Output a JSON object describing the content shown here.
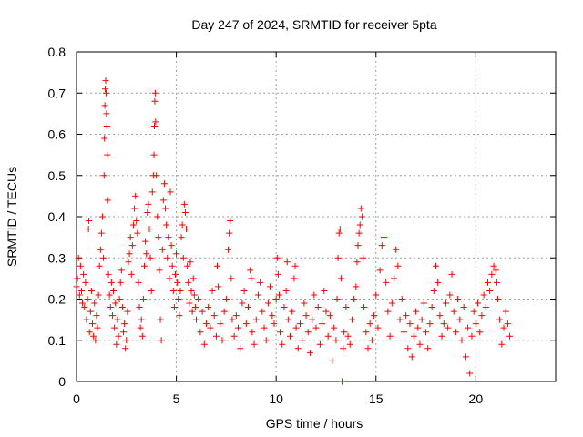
{
  "chart_data": {
    "type": "scatter",
    "title": "Day 247 of 2024, SRMTID for receiver 5pta",
    "xlabel": "GPS time / hours",
    "ylabel": "SRMTID / TECUs",
    "xlim": [
      0,
      24
    ],
    "ylim": [
      0,
      0.8
    ],
    "xticks": [
      0,
      5,
      10,
      15,
      20
    ],
    "xtick_labels": [
      "0",
      "5",
      "10",
      "15",
      "20"
    ],
    "yticks": [
      0,
      0.1,
      0.2,
      0.3,
      0.4,
      0.5,
      0.6,
      0.7,
      0.8
    ],
    "ytick_labels": [
      "0",
      "0.1",
      "0.2",
      "0.3",
      "0.4",
      "0.5",
      "0.6",
      "0.7",
      "0.8"
    ],
    "grid": true,
    "marker": "plus",
    "color": "#ff0000",
    "series": [
      {
        "name": "SRMTID",
        "points": [
          [
            0.0,
            0.23
          ],
          [
            0.05,
            0.25
          ],
          [
            0.1,
            0.3
          ],
          [
            0.15,
            0.21
          ],
          [
            0.2,
            0.28
          ],
          [
            0.25,
            0.22
          ],
          [
            0.3,
            0.19
          ],
          [
            0.35,
            0.26
          ],
          [
            0.4,
            0.18
          ],
          [
            0.45,
            0.24
          ],
          [
            0.5,
            0.15
          ],
          [
            0.55,
            0.2
          ],
          [
            0.6,
            0.37
          ],
          [
            0.62,
            0.39
          ],
          [
            0.65,
            0.12
          ],
          [
            0.7,
            0.17
          ],
          [
            0.75,
            0.22
          ],
          [
            0.8,
            0.14
          ],
          [
            0.85,
            0.11
          ],
          [
            0.9,
            0.19
          ],
          [
            0.95,
            0.1
          ],
          [
            1.0,
            0.16
          ],
          [
            1.05,
            0.13
          ],
          [
            1.1,
            0.21
          ],
          [
            1.15,
            0.28
          ],
          [
            1.2,
            0.32
          ],
          [
            1.25,
            0.36
          ],
          [
            1.3,
            0.4
          ],
          [
            1.35,
            0.3
          ],
          [
            1.38,
            0.5
          ],
          [
            1.4,
            0.59
          ],
          [
            1.42,
            0.67
          ],
          [
            1.44,
            0.71
          ],
          [
            1.46,
            0.73
          ],
          [
            1.48,
            0.7
          ],
          [
            1.5,
            0.65
          ],
          [
            1.52,
            0.62
          ],
          [
            1.54,
            0.55
          ],
          [
            1.56,
            0.44
          ],
          [
            1.6,
            0.26
          ],
          [
            1.65,
            0.21
          ],
          [
            1.7,
            0.18
          ],
          [
            1.75,
            0.24
          ],
          [
            1.8,
            0.16
          ],
          [
            1.85,
            0.22
          ],
          [
            1.9,
            0.13
          ],
          [
            1.95,
            0.19
          ],
          [
            2.0,
            0.09
          ],
          [
            2.05,
            0.15
          ],
          [
            2.1,
            0.11
          ],
          [
            2.15,
            0.2
          ],
          [
            2.2,
            0.24
          ],
          [
            2.25,
            0.27
          ],
          [
            2.3,
            0.18
          ],
          [
            2.35,
            0.12
          ],
          [
            2.4,
            0.14
          ],
          [
            2.45,
            0.08
          ],
          [
            2.5,
            0.1
          ],
          [
            2.55,
            0.17
          ],
          [
            2.6,
            0.29
          ],
          [
            2.65,
            0.31
          ],
          [
            2.7,
            0.35
          ],
          [
            2.75,
            0.26
          ],
          [
            2.8,
            0.33
          ],
          [
            2.85,
            0.38
          ],
          [
            2.9,
            0.42
          ],
          [
            2.95,
            0.45
          ],
          [
            3.0,
            0.39
          ],
          [
            3.05,
            0.36
          ],
          [
            3.1,
            0.24
          ],
          [
            3.15,
            0.18
          ],
          [
            3.2,
            0.13
          ],
          [
            3.25,
            0.15
          ],
          [
            3.3,
            0.11
          ],
          [
            3.35,
            0.2
          ],
          [
            3.4,
            0.28
          ],
          [
            3.45,
            0.34
          ],
          [
            3.5,
            0.31
          ],
          [
            3.55,
            0.41
          ],
          [
            3.6,
            0.43
          ],
          [
            3.65,
            0.37
          ],
          [
            3.7,
            0.3
          ],
          [
            3.75,
            0.22
          ],
          [
            3.8,
            0.46
          ],
          [
            3.85,
            0.5
          ],
          [
            3.88,
            0.55
          ],
          [
            3.9,
            0.62
          ],
          [
            3.92,
            0.68
          ],
          [
            3.94,
            0.7
          ],
          [
            3.96,
            0.63
          ],
          [
            4.0,
            0.5
          ],
          [
            4.05,
            0.4
          ],
          [
            4.1,
            0.35
          ],
          [
            4.15,
            0.27
          ],
          [
            4.2,
            0.15
          ],
          [
            4.25,
            0.1
          ],
          [
            4.3,
            0.32
          ],
          [
            4.35,
            0.44
          ],
          [
            4.4,
            0.48
          ],
          [
            4.45,
            0.42
          ],
          [
            4.5,
            0.38
          ],
          [
            4.55,
            0.3
          ],
          [
            4.6,
            0.35
          ],
          [
            4.65,
            0.25
          ],
          [
            4.7,
            0.46
          ],
          [
            4.75,
            0.33
          ],
          [
            4.8,
            0.28
          ],
          [
            4.85,
            0.22
          ],
          [
            4.9,
            0.18
          ],
          [
            4.95,
            0.26
          ],
          [
            5.0,
            0.31
          ],
          [
            5.05,
            0.24
          ],
          [
            5.1,
            0.2
          ],
          [
            5.15,
            0.16
          ],
          [
            5.2,
            0.22
          ],
          [
            5.25,
            0.35
          ],
          [
            5.3,
            0.38
          ],
          [
            5.35,
            0.3
          ],
          [
            5.4,
            0.43
          ],
          [
            5.45,
            0.41
          ],
          [
            5.5,
            0.37
          ],
          [
            5.55,
            0.28
          ],
          [
            5.6,
            0.24
          ],
          [
            5.65,
            0.19
          ],
          [
            5.7,
            0.29
          ],
          [
            5.75,
            0.22
          ],
          [
            5.8,
            0.17
          ],
          [
            5.85,
            0.25
          ],
          [
            5.9,
            0.21
          ],
          [
            5.95,
            0.18
          ],
          [
            6.0,
            0.15
          ],
          [
            6.1,
            0.2
          ],
          [
            6.2,
            0.12
          ],
          [
            6.3,
            0.17
          ],
          [
            6.4,
            0.09
          ],
          [
            6.5,
            0.14
          ],
          [
            6.6,
            0.18
          ],
          [
            6.7,
            0.13
          ],
          [
            6.8,
            0.22
          ],
          [
            6.9,
            0.16
          ],
          [
            7.0,
            0.11
          ],
          [
            7.05,
            0.28
          ],
          [
            7.1,
            0.23
          ],
          [
            7.2,
            0.14
          ],
          [
            7.3,
            0.1
          ],
          [
            7.4,
            0.17
          ],
          [
            7.5,
            0.2
          ],
          [
            7.6,
            0.32
          ],
          [
            7.65,
            0.36
          ],
          [
            7.7,
            0.39
          ],
          [
            7.75,
            0.25
          ],
          [
            7.8,
            0.15
          ],
          [
            7.9,
            0.11
          ],
          [
            8.0,
            0.16
          ],
          [
            8.1,
            0.13
          ],
          [
            8.2,
            0.08
          ],
          [
            8.3,
            0.19
          ],
          [
            8.4,
            0.22
          ],
          [
            8.5,
            0.14
          ],
          [
            8.6,
            0.18
          ],
          [
            8.7,
            0.27
          ],
          [
            8.75,
            0.25
          ],
          [
            8.8,
            0.12
          ],
          [
            8.9,
            0.09
          ],
          [
            9.0,
            0.15
          ],
          [
            9.1,
            0.21
          ],
          [
            9.2,
            0.24
          ],
          [
            9.3,
            0.17
          ],
          [
            9.4,
            0.13
          ],
          [
            9.5,
            0.1
          ],
          [
            9.6,
            0.19
          ],
          [
            9.7,
            0.23
          ],
          [
            9.8,
            0.16
          ],
          [
            9.9,
            0.14
          ],
          [
            10.0,
            0.2
          ],
          [
            10.05,
            0.3
          ],
          [
            10.1,
            0.26
          ],
          [
            10.15,
            0.21
          ],
          [
            10.2,
            0.12
          ],
          [
            10.3,
            0.09
          ],
          [
            10.4,
            0.18
          ],
          [
            10.5,
            0.22
          ],
          [
            10.55,
            0.29
          ],
          [
            10.6,
            0.15
          ],
          [
            10.7,
            0.11
          ],
          [
            10.8,
            0.17
          ],
          [
            10.9,
            0.25
          ],
          [
            10.95,
            0.28
          ],
          [
            11.0,
            0.13
          ],
          [
            11.1,
            0.08
          ],
          [
            11.2,
            0.14
          ],
          [
            11.3,
            0.1
          ],
          [
            11.4,
            0.19
          ],
          [
            11.5,
            0.16
          ],
          [
            11.6,
            0.12
          ],
          [
            11.7,
            0.07
          ],
          [
            11.8,
            0.15
          ],
          [
            11.9,
            0.21
          ],
          [
            12.0,
            0.13
          ],
          [
            12.1,
            0.18
          ],
          [
            12.2,
            0.09
          ],
          [
            12.3,
            0.14
          ],
          [
            12.4,
            0.22
          ],
          [
            12.5,
            0.17
          ],
          [
            12.6,
            0.11
          ],
          [
            12.7,
            0.16
          ],
          [
            12.8,
            0.05
          ],
          [
            12.9,
            0.13
          ],
          [
            13.0,
            0.1
          ],
          [
            13.05,
            0.2
          ],
          [
            13.1,
            0.3
          ],
          [
            13.15,
            0.36
          ],
          [
            13.2,
            0.37
          ],
          [
            13.25,
            0.25
          ],
          [
            13.3,
            0.0
          ],
          [
            13.35,
            0.08
          ],
          [
            13.4,
            0.12
          ],
          [
            13.5,
            0.18
          ],
          [
            13.6,
            0.11
          ],
          [
            13.7,
            0.09
          ],
          [
            13.8,
            0.15
          ],
          [
            13.9,
            0.2
          ],
          [
            14.0,
            0.23
          ],
          [
            14.05,
            0.29
          ],
          [
            14.1,
            0.33
          ],
          [
            14.15,
            0.36
          ],
          [
            14.2,
            0.38
          ],
          [
            14.25,
            0.42
          ],
          [
            14.3,
            0.4
          ],
          [
            14.35,
            0.3
          ],
          [
            14.4,
            0.18
          ],
          [
            14.5,
            0.12
          ],
          [
            14.6,
            0.08
          ],
          [
            14.7,
            0.14
          ],
          [
            14.8,
            0.1
          ],
          [
            14.9,
            0.16
          ],
          [
            15.0,
            0.21
          ],
          [
            15.1,
            0.13
          ],
          [
            15.2,
            0.27
          ],
          [
            15.3,
            0.33
          ],
          [
            15.4,
            0.35
          ],
          [
            15.5,
            0.24
          ],
          [
            15.6,
            0.17
          ],
          [
            15.7,
            0.11
          ],
          [
            15.8,
            0.19
          ],
          [
            15.9,
            0.25
          ],
          [
            16.0,
            0.32
          ],
          [
            16.1,
            0.28
          ],
          [
            16.2,
            0.15
          ],
          [
            16.3,
            0.2
          ],
          [
            16.4,
            0.12
          ],
          [
            16.5,
            0.16
          ],
          [
            16.6,
            0.08
          ],
          [
            16.7,
            0.14
          ],
          [
            16.8,
            0.06
          ],
          [
            16.9,
            0.11
          ],
          [
            17.0,
            0.17
          ],
          [
            17.1,
            0.13
          ],
          [
            17.2,
            0.09
          ],
          [
            17.3,
            0.15
          ],
          [
            17.4,
            0.19
          ],
          [
            17.5,
            0.12
          ],
          [
            17.6,
            0.08
          ],
          [
            17.7,
            0.14
          ],
          [
            17.8,
            0.18
          ],
          [
            17.9,
            0.22
          ],
          [
            18.0,
            0.28
          ],
          [
            18.1,
            0.24
          ],
          [
            18.2,
            0.16
          ],
          [
            18.3,
            0.11
          ],
          [
            18.4,
            0.14
          ],
          [
            18.5,
            0.19
          ],
          [
            18.6,
            0.13
          ],
          [
            18.7,
            0.21
          ],
          [
            18.8,
            0.26
          ],
          [
            18.9,
            0.17
          ],
          [
            19.0,
            0.12
          ],
          [
            19.1,
            0.2
          ],
          [
            19.2,
            0.15
          ],
          [
            19.3,
            0.1
          ],
          [
            19.4,
            0.18
          ],
          [
            19.5,
            0.06
          ],
          [
            19.6,
            0.13
          ],
          [
            19.7,
            0.02
          ],
          [
            19.8,
            0.11
          ],
          [
            19.9,
            0.17
          ],
          [
            20.0,
            0.14
          ],
          [
            20.1,
            0.19
          ],
          [
            20.2,
            0.12
          ],
          [
            20.3,
            0.16
          ],
          [
            20.4,
            0.21
          ],
          [
            20.5,
            0.18
          ],
          [
            20.6,
            0.24
          ],
          [
            20.7,
            0.22
          ],
          [
            20.8,
            0.26
          ],
          [
            20.9,
            0.28
          ],
          [
            21.0,
            0.27
          ],
          [
            21.05,
            0.24
          ],
          [
            21.1,
            0.2
          ],
          [
            21.2,
            0.15
          ],
          [
            21.3,
            0.09
          ],
          [
            21.4,
            0.13
          ],
          [
            21.5,
            0.17
          ],
          [
            21.6,
            0.14
          ],
          [
            21.7,
            0.11
          ]
        ]
      }
    ]
  }
}
